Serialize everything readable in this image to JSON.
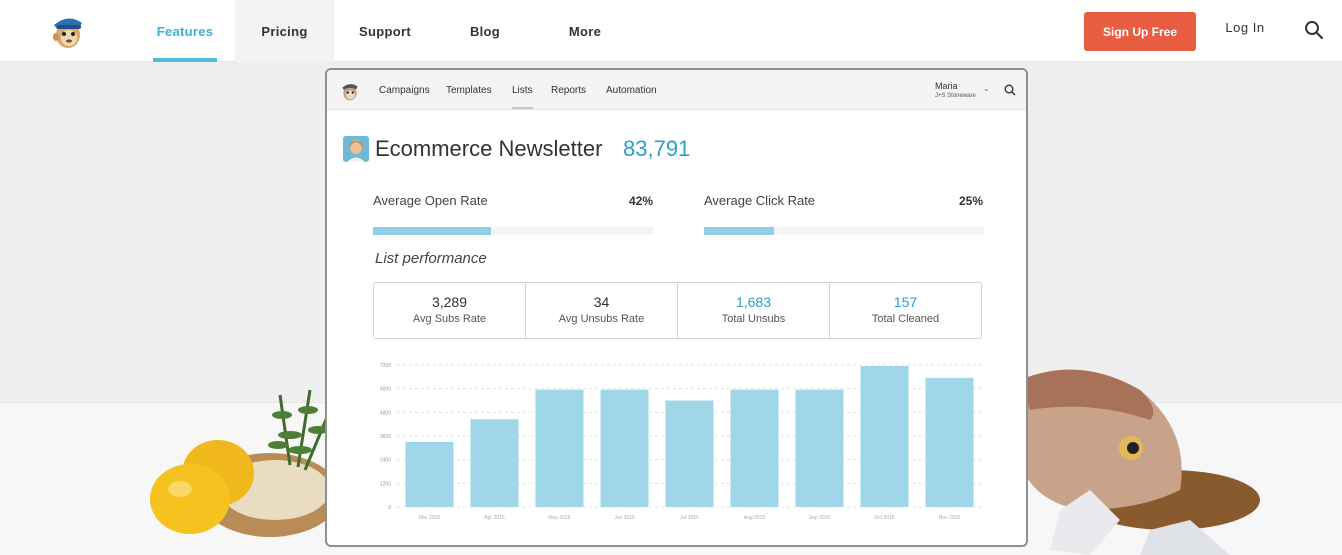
{
  "site_nav": {
    "items": [
      {
        "label": "Features",
        "active": true
      },
      {
        "label": "Pricing",
        "hover": true
      },
      {
        "label": "Support"
      },
      {
        "label": "Blog"
      },
      {
        "label": "More"
      }
    ],
    "signup_label": "Sign Up Free",
    "login_label": "Log In",
    "search_icon": "search-icon",
    "brand_color": "#e85c41",
    "accent_color": "#52bcd9"
  },
  "app": {
    "tabs": [
      {
        "label": "Campaigns"
      },
      {
        "label": "Templates"
      },
      {
        "label": "Lists",
        "active": true
      },
      {
        "label": "Reports"
      },
      {
        "label": "Automation"
      }
    ],
    "user": {
      "name": "Maria",
      "org": "J+S Stoneware"
    },
    "list": {
      "title": "Ecommerce Newsletter",
      "count": "83,791"
    },
    "rates": [
      {
        "label": "Average Open Rate",
        "value": "42%",
        "fraction": 0.42
      },
      {
        "label": "Average Click Rate",
        "value": "25%",
        "fraction": 0.25
      }
    ],
    "performance_title": "List performance",
    "stats": [
      {
        "value": "3,289",
        "label": "Avg Subs Rate",
        "highlight": false
      },
      {
        "value": "34",
        "label": "Avg Unsubs Rate",
        "highlight": false
      },
      {
        "value": "1,683",
        "label": "Total Unsubs",
        "highlight": true
      },
      {
        "value": "157",
        "label": "Total Cleaned",
        "highlight": true
      }
    ]
  },
  "chart_data": {
    "type": "bar",
    "categories": [
      "Mar 2015",
      "Apr 2015",
      "May 2015",
      "Jun 2015",
      "Jul 2015",
      "Aug 2015",
      "Sep 2015",
      "Oct 2015",
      "Nov 2015"
    ],
    "values": [
      3300,
      4450,
      5950,
      5950,
      5400,
      5950,
      5950,
      7150,
      6550
    ],
    "yticks": [
      0,
      1200,
      2400,
      3600,
      4800,
      6000,
      7200
    ],
    "ylim": [
      0,
      7200
    ],
    "grid": true,
    "bar_color": "#9fd7e8"
  }
}
